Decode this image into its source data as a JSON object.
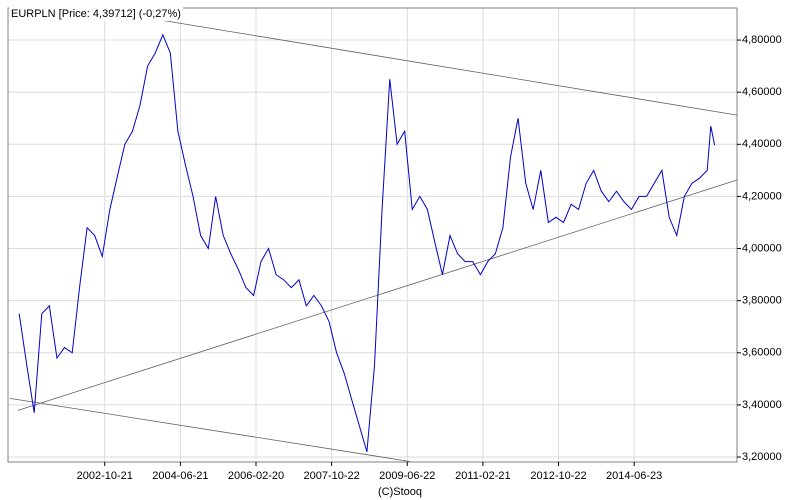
{
  "chart_data": {
    "type": "line",
    "title": "EURPLN [Price: 4,39712] (-0,27%)",
    "footer": "(C)Stooq",
    "grid": true,
    "x": [
      "2000-12-01",
      "2001-02-01",
      "2001-04-01",
      "2001-06-01",
      "2001-08-01",
      "2001-10-01",
      "2001-12-01",
      "2002-02-01",
      "2002-04-01",
      "2002-06-01",
      "2002-08-01",
      "2002-10-01",
      "2002-12-01",
      "2003-02-01",
      "2003-04-01",
      "2003-06-01",
      "2003-08-01",
      "2003-10-01",
      "2003-12-01",
      "2004-02-01",
      "2004-04-01",
      "2004-06-01",
      "2004-08-01",
      "2004-10-01",
      "2004-12-01",
      "2005-02-01",
      "2005-04-01",
      "2005-06-01",
      "2005-08-01",
      "2005-10-01",
      "2005-12-01",
      "2006-02-01",
      "2006-04-01",
      "2006-06-01",
      "2006-08-01",
      "2006-10-01",
      "2006-12-01",
      "2007-02-01",
      "2007-04-01",
      "2007-06-01",
      "2007-08-01",
      "2007-10-01",
      "2007-12-01",
      "2008-02-01",
      "2008-04-01",
      "2008-06-01",
      "2008-08-01",
      "2008-10-01",
      "2008-12-01",
      "2009-02-01",
      "2009-04-01",
      "2009-06-01",
      "2009-08-01",
      "2009-10-01",
      "2009-12-01",
      "2010-02-01",
      "2010-04-01",
      "2010-06-01",
      "2010-08-01",
      "2010-10-01",
      "2010-12-01",
      "2011-02-01",
      "2011-04-01",
      "2011-06-01",
      "2011-08-01",
      "2011-10-01",
      "2011-12-01",
      "2012-02-01",
      "2012-04-01",
      "2012-06-01",
      "2012-08-01",
      "2012-10-01",
      "2012-12-01",
      "2013-02-01",
      "2013-04-01",
      "2013-06-01",
      "2013-08-01",
      "2013-10-01",
      "2013-12-01",
      "2014-02-01",
      "2014-04-01",
      "2014-06-01",
      "2014-08-01",
      "2014-10-01",
      "2014-12-01",
      "2015-02-01",
      "2015-04-01",
      "2015-06-01",
      "2015-08-01",
      "2015-10-01",
      "2015-12-01",
      "2016-02-01",
      "2016-03-01",
      "2016-04-01"
    ],
    "series": [
      {
        "color": "#0000cc",
        "values": [
          3.75,
          3.55,
          3.37,
          3.75,
          3.78,
          3.58,
          3.62,
          3.6,
          3.85,
          4.08,
          4.05,
          3.97,
          4.15,
          4.28,
          4.4,
          4.45,
          4.55,
          4.7,
          4.75,
          4.82,
          4.75,
          4.45,
          4.32,
          4.2,
          4.05,
          4.0,
          4.2,
          4.05,
          3.98,
          3.92,
          3.85,
          3.82,
          3.95,
          4.0,
          3.9,
          3.88,
          3.85,
          3.88,
          3.78,
          3.82,
          3.78,
          3.72,
          3.6,
          3.52,
          3.42,
          3.32,
          3.22,
          3.55,
          4.15,
          4.65,
          4.4,
          4.45,
          4.15,
          4.2,
          4.15,
          4.02,
          3.9,
          4.05,
          3.98,
          3.95,
          3.95,
          3.9,
          3.95,
          3.98,
          4.08,
          4.35,
          4.5,
          4.25,
          4.15,
          4.3,
          4.1,
          4.12,
          4.1,
          4.17,
          4.15,
          4.25,
          4.3,
          4.22,
          4.18,
          4.22,
          4.18,
          4.15,
          4.2,
          4.2,
          4.25,
          4.3,
          4.12,
          4.05,
          4.2,
          4.25,
          4.27,
          4.3,
          4.47,
          4.397
        ]
      }
    ],
    "trend_lines": [
      {
        "x": [
          "2004-01-10",
          "2016-09-28"
        ],
        "y": [
          4.877,
          4.512
        ]
      },
      {
        "x": [
          "2000-11-21",
          "2016-09-28"
        ],
        "y": [
          3.379,
          4.263
        ]
      },
      {
        "x": [
          "2000-09-18",
          "2009-07-13"
        ],
        "y": [
          3.425,
          3.183
        ]
      }
    ],
    "xlim": [
      "2000-09-02",
      "2016-09-28"
    ],
    "xticks": [
      "2002-10-21",
      "2004-06-21",
      "2006-02-20",
      "2007-10-22",
      "2009-06-22",
      "2011-02-21",
      "2012-10-22",
      "2014-06-23"
    ],
    "ylim": [
      3.181,
      4.923
    ],
    "yticks": [
      {
        "value": 3.2,
        "label": "3,20000"
      },
      {
        "value": 3.4,
        "label": "3,40000"
      },
      {
        "value": 3.6,
        "label": "3,60000"
      },
      {
        "value": 3.8,
        "label": "3,80000"
      },
      {
        "value": 4.0,
        "label": "4,00000"
      },
      {
        "value": 4.2,
        "label": "4,20000"
      },
      {
        "value": 4.4,
        "label": "4,40000"
      },
      {
        "value": 4.6,
        "label": "4,60000"
      },
      {
        "value": 4.8,
        "label": "4,80000"
      }
    ]
  }
}
